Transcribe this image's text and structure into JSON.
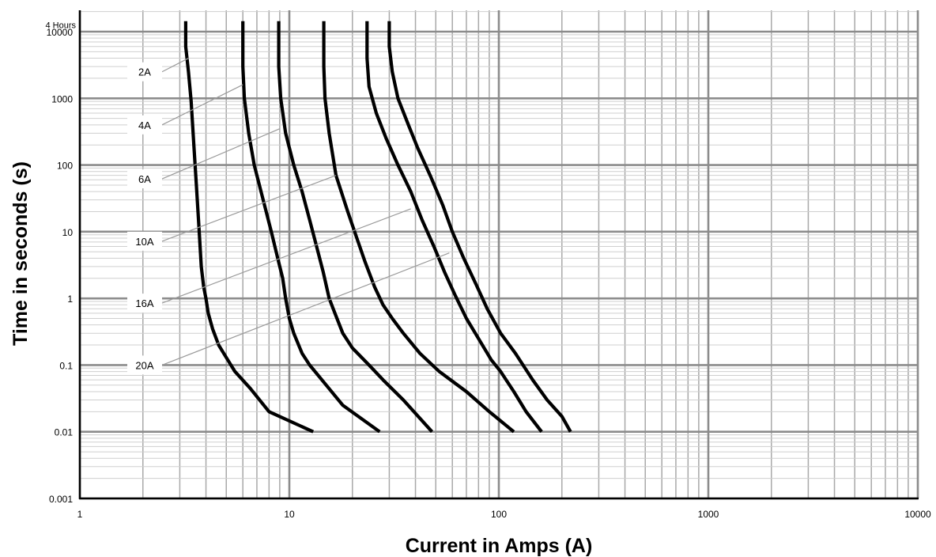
{
  "chart_data": {
    "type": "line",
    "title": "",
    "xlabel": "Current in Amps (A)",
    "ylabel": "Time in seconds (s)",
    "x_scale": "log",
    "y_scale": "log",
    "xlim": [
      1,
      10000
    ],
    "ylim": [
      0.001,
      14400
    ],
    "grid": true,
    "x_ticks": [
      {
        "value": 1,
        "label": "1"
      },
      {
        "value": 10,
        "label": "10"
      },
      {
        "value": 100,
        "label": "100"
      },
      {
        "value": 1000,
        "label": "1000"
      },
      {
        "value": 10000,
        "label": "10000"
      }
    ],
    "y_ticks": [
      {
        "value": 0.001,
        "label": "0.001"
      },
      {
        "value": 0.01,
        "label": "0.01"
      },
      {
        "value": 0.1,
        "label": "0.1"
      },
      {
        "value": 1,
        "label": "1"
      },
      {
        "value": 10,
        "label": "10"
      },
      {
        "value": 100,
        "label": "100"
      },
      {
        "value": 1000,
        "label": "1000"
      },
      {
        "value": 10000,
        "label": "10000"
      }
    ],
    "top_annotation": {
      "value": 14400,
      "label": "4 Hours"
    },
    "series": [
      {
        "name": "2A",
        "label_anchor": {
          "x": 3.3,
          "y": 4000
        },
        "label_y": 2500,
        "points": [
          [
            3.2,
            14400
          ],
          [
            3.2,
            6000
          ],
          [
            3.3,
            2500
          ],
          [
            3.4,
            900
          ],
          [
            3.5,
            200
          ],
          [
            3.6,
            50
          ],
          [
            3.7,
            12
          ],
          [
            3.8,
            3
          ],
          [
            3.9,
            1.5
          ],
          [
            4,
            1
          ],
          [
            4.1,
            0.6
          ],
          [
            4.3,
            0.35
          ],
          [
            4.6,
            0.2
          ],
          [
            5,
            0.13
          ],
          [
            5.5,
            0.08
          ],
          [
            6.5,
            0.045
          ],
          [
            8,
            0.02
          ],
          [
            13,
            0.01
          ]
        ]
      },
      {
        "name": "4A",
        "label_anchor": {
          "x": 6,
          "y": 1600
        },
        "label_y": 400,
        "points": [
          [
            6,
            14400
          ],
          [
            6,
            3000
          ],
          [
            6.1,
            1000
          ],
          [
            6.4,
            300
          ],
          [
            6.8,
            100
          ],
          [
            7.5,
            30
          ],
          [
            8.2,
            10
          ],
          [
            8.8,
            4
          ],
          [
            9.3,
            2
          ],
          [
            9.6,
            1
          ],
          [
            10,
            0.5
          ],
          [
            10.5,
            0.3
          ],
          [
            11.5,
            0.15
          ],
          [
            12.5,
            0.1
          ],
          [
            15,
            0.05
          ],
          [
            18,
            0.025
          ],
          [
            27,
            0.01
          ]
        ]
      },
      {
        "name": "6A",
        "label_anchor": {
          "x": 9,
          "y": 350
        },
        "label_y": 62,
        "points": [
          [
            8.9,
            14400
          ],
          [
            8.9,
            3000
          ],
          [
            9.1,
            1000
          ],
          [
            9.6,
            300
          ],
          [
            10.5,
            100
          ],
          [
            11.5,
            40
          ],
          [
            12.5,
            15
          ],
          [
            13.5,
            6
          ],
          [
            14.5,
            2.5
          ],
          [
            15.5,
            1
          ],
          [
            16.5,
            0.6
          ],
          [
            18,
            0.3
          ],
          [
            20,
            0.18
          ],
          [
            24,
            0.1
          ],
          [
            28,
            0.06
          ],
          [
            35,
            0.03
          ],
          [
            48,
            0.01
          ]
        ]
      },
      {
        "name": "10A",
        "label_anchor": {
          "x": 16.7,
          "y": 70
        },
        "label_y": 7.2,
        "points": [
          [
            14.6,
            14400
          ],
          [
            14.6,
            3000
          ],
          [
            14.8,
            1000
          ],
          [
            15.5,
            300
          ],
          [
            16.7,
            70
          ],
          [
            19,
            20
          ],
          [
            21,
            8
          ],
          [
            23,
            3.5
          ],
          [
            25.5,
            1.5
          ],
          [
            28,
            0.8
          ],
          [
            31,
            0.5
          ],
          [
            35,
            0.3
          ],
          [
            42,
            0.15
          ],
          [
            52,
            0.08
          ],
          [
            70,
            0.04
          ],
          [
            90,
            0.02
          ],
          [
            118,
            0.01
          ]
        ]
      },
      {
        "name": "16A",
        "label_anchor": {
          "x": 38,
          "y": 22
        },
        "label_y": 0.85,
        "points": [
          [
            23.5,
            14400
          ],
          [
            23.5,
            4000
          ],
          [
            24,
            1500
          ],
          [
            26,
            600
          ],
          [
            29,
            250
          ],
          [
            33,
            100
          ],
          [
            38,
            40
          ],
          [
            43,
            15
          ],
          [
            49,
            6
          ],
          [
            55,
            2.5
          ],
          [
            62,
            1.1
          ],
          [
            70,
            0.5
          ],
          [
            80,
            0.25
          ],
          [
            92,
            0.12
          ],
          [
            102,
            0.08
          ],
          [
            118,
            0.04
          ],
          [
            135,
            0.02
          ],
          [
            160,
            0.01
          ]
        ]
      },
      {
        "name": "20A",
        "label_anchor": {
          "x": 58,
          "y": 4.8
        },
        "label_y": 0.1,
        "points": [
          [
            30,
            14400
          ],
          [
            30,
            6000
          ],
          [
            31,
            2500
          ],
          [
            33,
            1000
          ],
          [
            37,
            400
          ],
          [
            41,
            180
          ],
          [
            47,
            70
          ],
          [
            54,
            25
          ],
          [
            60,
            10
          ],
          [
            68,
            4
          ],
          [
            78,
            1.6
          ],
          [
            88,
            0.7
          ],
          [
            102,
            0.3
          ],
          [
            120,
            0.15
          ],
          [
            145,
            0.06
          ],
          [
            170,
            0.03
          ],
          [
            200,
            0.017
          ],
          [
            220,
            0.01
          ]
        ]
      }
    ]
  }
}
